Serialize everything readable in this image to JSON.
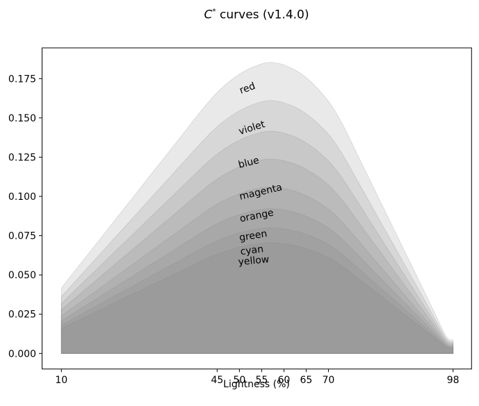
{
  "figure": {
    "title_math_italic": "C",
    "title_superscript": "*",
    "title_rest": " curves (v1.4.0)"
  },
  "chart_data": {
    "type": "area",
    "title": "C* curves (v1.4.0)",
    "xlabel": "Lightness (%)",
    "ylabel": "",
    "grid": false,
    "legend_position": "inline-curve-labels",
    "fill_color": "#808080",
    "fill_opacity": 0.178,
    "stroke_opacity": 0.25,
    "x_ticks": [
      10,
      45,
      50,
      55,
      60,
      65,
      70,
      98
    ],
    "y_tick_labels": [
      "0.000",
      "0.025",
      "0.050",
      "0.075",
      "0.100",
      "0.125",
      "0.150",
      "0.175"
    ],
    "xlim": [
      5.7,
      102.2
    ],
    "ylim": [
      -0.0099,
      0.1953
    ],
    "x": [
      10,
      14,
      18,
      22,
      26,
      30,
      34,
      38,
      42,
      45,
      48,
      51,
      54,
      56.5,
      59,
      61,
      63,
      65,
      67,
      69,
      71,
      73.5,
      76,
      79,
      82,
      85,
      88,
      91,
      94,
      96.5,
      98
    ],
    "shape_f": [
      0.225,
      0.303,
      0.38,
      0.458,
      0.535,
      0.613,
      0.69,
      0.768,
      0.845,
      0.897,
      0.938,
      0.969,
      0.99,
      1.0,
      0.996,
      0.985,
      0.97,
      0.948,
      0.92,
      0.886,
      0.845,
      0.778,
      0.7,
      0.606,
      0.512,
      0.418,
      0.324,
      0.23,
      0.135,
      0.058,
      0.046
    ],
    "peak_x": 56.5,
    "series": [
      {
        "name": "red",
        "peak": 0.1853,
        "start_value": 0.0417,
        "end_value": 0.0085,
        "label_x": 51.8,
        "label_y": 0.1687,
        "label_rot": -20
      },
      {
        "name": "violet",
        "peak": 0.161,
        "start_value": 0.0362,
        "end_value": 0.0074,
        "label_x": 52.8,
        "label_y": 0.1435,
        "label_rot": -17
      },
      {
        "name": "blue",
        "peak": 0.1415,
        "start_value": 0.0318,
        "end_value": 0.0065,
        "label_x": 52.1,
        "label_y": 0.1214,
        "label_rot": -14
      },
      {
        "name": "magenta",
        "peak": 0.1238,
        "start_value": 0.0279,
        "end_value": 0.0057,
        "label_x": 54.8,
        "label_y": 0.1027,
        "label_rot": -13
      },
      {
        "name": "orange",
        "peak": 0.106,
        "start_value": 0.0239,
        "end_value": 0.0049,
        "label_x": 53.9,
        "label_y": 0.0876,
        "label_rot": -11
      },
      {
        "name": "green",
        "peak": 0.0922,
        "start_value": 0.0207,
        "end_value": 0.0042,
        "label_x": 53.1,
        "label_y": 0.0748,
        "label_rot": -9
      },
      {
        "name": "cyan",
        "peak": 0.08,
        "start_value": 0.018,
        "end_value": 0.0037,
        "label_x": 52.8,
        "label_y": 0.0655,
        "label_rot": -7
      },
      {
        "name": "yellow",
        "peak": 0.0705,
        "start_value": 0.0159,
        "end_value": 0.0032,
        "label_x": 53.2,
        "label_y": 0.0589,
        "label_rot": -5
      }
    ]
  }
}
